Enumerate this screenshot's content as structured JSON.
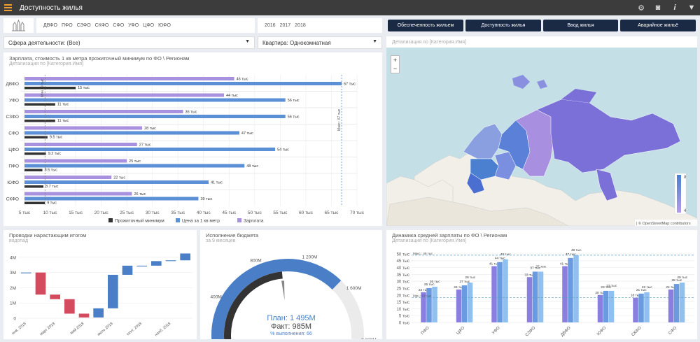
{
  "header": {
    "title": "Доступность жилья"
  },
  "filters": {
    "regions": [
      "ДВФО",
      "ПФО",
      "СЗФО",
      "СКФО",
      "СФО",
      "УФО",
      "ЦФО",
      "ЮФО"
    ],
    "years": [
      "2016",
      "2017",
      "2018"
    ],
    "activity": "Сфера деятельности: (Все)",
    "apartment": "Квартира: Однокомнатная"
  },
  "nav": {
    "btn1": "Обеспеченность жильем",
    "btn2": "Доступность жилья",
    "btn3": "Ввод жилья",
    "btn4": "Аварийное жильё"
  },
  "map": {
    "detail": "Детализация по [Категория.Имя]",
    "zoom_in": "+",
    "zoom_out": "−",
    "legend_max": "8",
    "legend_min": "4",
    "attribution": "| © OpenStreetMap contributors"
  },
  "charts": {
    "salary": {
      "title": "Зарплата, стоимость 1 кв метра прожиточный минимум по ФО \\ Регионам",
      "subtitle": "Детализация по [Категория.Имя]",
      "line_left": "Мин.: 9 тыс",
      "line_right": "Макс.: 67 тыс",
      "legend": [
        "Прожиточный минимум",
        "Цена за 1 кв метр",
        "Зарплата"
      ]
    },
    "cumulative": {
      "title": "Проводки нарастающим итогом",
      "subtitle": "водопад"
    },
    "budget": {
      "title": "Исполнение бюджета",
      "subtitle": "за 9 месяцев",
      "plan": "План: 1 495M",
      "fact": "Факт: 985M",
      "pct": "% выполнения: 66"
    },
    "dynamics": {
      "title": "Динамика средней зарплаты по ФО \\ Регионам",
      "subtitle": "Детализация по [Категория.Имя]",
      "line_max": "Макс.: 49 тыс",
      "line_min": "Мин.: 18 тыс"
    }
  },
  "chart_data": [
    {
      "type": "bar",
      "title": "Зарплата, стоимость 1 кв метра прожиточный минимум по ФО \\ Регионам",
      "orientation": "horizontal",
      "categories": [
        "ДВФО",
        "УФО",
        "СЗФО",
        "СФО",
        "ЦФО",
        "ПФО",
        "ЮФО",
        "СКФО"
      ],
      "series": [
        {
          "name": "Зарплата",
          "values": [
            46,
            44,
            36,
            28,
            27,
            25,
            22,
            26
          ],
          "color": "#a891df"
        },
        {
          "name": "Цена за 1 кв метр",
          "values": [
            67,
            56,
            56,
            47,
            54,
            48,
            41,
            39
          ],
          "color": "#5b8fd6"
        },
        {
          "name": "Прожиточный минимум",
          "values": [
            15,
            11,
            11,
            9.5,
            9.2,
            8.5,
            8.7,
            9
          ],
          "color": "#333333"
        }
      ],
      "value_labels": [
        [
          "46 тыс",
          "67 тыс",
          "15 тыс"
        ],
        [
          "44 тыс",
          "56 тыс",
          "11 тыс"
        ],
        [
          "36 тыс",
          "56 тыс",
          "11 тыс"
        ],
        [
          "28 тыс",
          "47 тыс",
          "9.5 тыс"
        ],
        [
          "27 тыс",
          "54 тыс",
          "9.2 тыс"
        ],
        [
          "25 тыс",
          "48 тыс",
          "8.5 тыс"
        ],
        [
          "22 тыс",
          "41 тыс",
          "8.7 тыс"
        ],
        [
          "26 тыс",
          "39 тыс",
          "9 тыс"
        ]
      ],
      "xticks": [
        "5 тыс",
        "10 тыс",
        "15 тыс",
        "20 тыс",
        "25 тыс",
        "30 тыс",
        "35 тыс",
        "40 тыс",
        "45 тыс",
        "50 тыс",
        "55 тыс",
        "60 тыс",
        "65 тыс",
        "70 тыс"
      ],
      "xlim": [
        5,
        70
      ],
      "reference_lines": [
        9,
        67
      ]
    },
    {
      "type": "bar",
      "subtype": "waterfall",
      "title": "Проводки нарастающим итогом",
      "categories": [
        "янв. 2018",
        "фев. 2018",
        "март 2018",
        "апр. 2018",
        "май 2018",
        "июнь 2018",
        "июль 2018",
        "авг. 2018",
        "сент. 2018",
        "окт. 2018",
        "нояб. 2018",
        "дек. 2018"
      ],
      "xtick_labels": [
        "янв. 2018",
        "март 2018",
        "май 2018",
        "июль 2018",
        "сент. 2018",
        "нояб. 2018"
      ],
      "bars": [
        {
          "start": 2.95,
          "end": 3.0
        },
        {
          "start": 3.0,
          "end": 1.55
        },
        {
          "start": 1.55,
          "end": 1.25
        },
        {
          "start": 1.25,
          "end": 0.3
        },
        {
          "start": 0.3,
          "end": 0.05
        },
        {
          "start": 0.05,
          "end": 0.65
        },
        {
          "start": 0.65,
          "end": 2.85
        },
        {
          "start": 2.85,
          "end": 3.45
        },
        {
          "start": 3.4,
          "end": 3.45
        },
        {
          "start": 3.45,
          "end": 3.75
        },
        {
          "start": 3.75,
          "end": 3.8
        },
        {
          "start": 3.8,
          "end": 4.25
        }
      ],
      "yticks": [
        "0",
        "1M",
        "2M",
        "3M",
        "4M"
      ],
      "ylim": [
        0,
        4.5
      ]
    },
    {
      "type": "gauge",
      "title": "Исполнение бюджета",
      "value": 985,
      "target": 1495,
      "max": 2000,
      "tick_labels": [
        "400M",
        "800M",
        "1 200M",
        "1 600M",
        "2 000M"
      ]
    },
    {
      "type": "bar",
      "title": "Динамика средней зарплаты по ФО \\ Регионам",
      "categories": [
        "ПФО",
        "ЦФО",
        "УФО",
        "СЗФО",
        "ДВФО",
        "ЮФО",
        "СКФО",
        "СФО"
      ],
      "series": [
        {
          "values": [
            22,
            24,
            41,
            33,
            41,
            20,
            18,
            24
          ]
        },
        {
          "values": [
            25,
            27,
            44,
            37,
            47,
            23,
            21,
            28
          ]
        },
        {
          "values": [
            26,
            29,
            46,
            37,
            49,
            23,
            22,
            29
          ]
        }
      ],
      "value_labels": [
        [
          "22 тыс",
          "25 тыс",
          "26 тыс"
        ],
        [
          "24 тыс",
          "27 тыс",
          "29 тыс"
        ],
        [
          "41 тыс",
          "44 тыс",
          "46 тыс"
        ],
        [
          "33 тыс",
          "37 тыс",
          "37 тыс"
        ],
        [
          "41 тыс",
          "47 тыс",
          "49 тыс"
        ],
        [
          "20 тыс",
          "23 тыс",
          "23 тыс"
        ],
        [
          "18 тыс",
          "21 тыс",
          "22 тыс"
        ],
        [
          "24 тыс",
          "28 тыс",
          "29 тыс"
        ]
      ],
      "yticks": [
        "0 тыс",
        "5 тыс",
        "10 тыс",
        "15 тыс",
        "20 тыс",
        "25 тыс",
        "30 тыс",
        "35 тыс",
        "40 тыс",
        "45 тыс",
        "50 тыс"
      ],
      "ylim": [
        0,
        52
      ],
      "reference_lines": [
        49,
        18
      ]
    }
  ]
}
